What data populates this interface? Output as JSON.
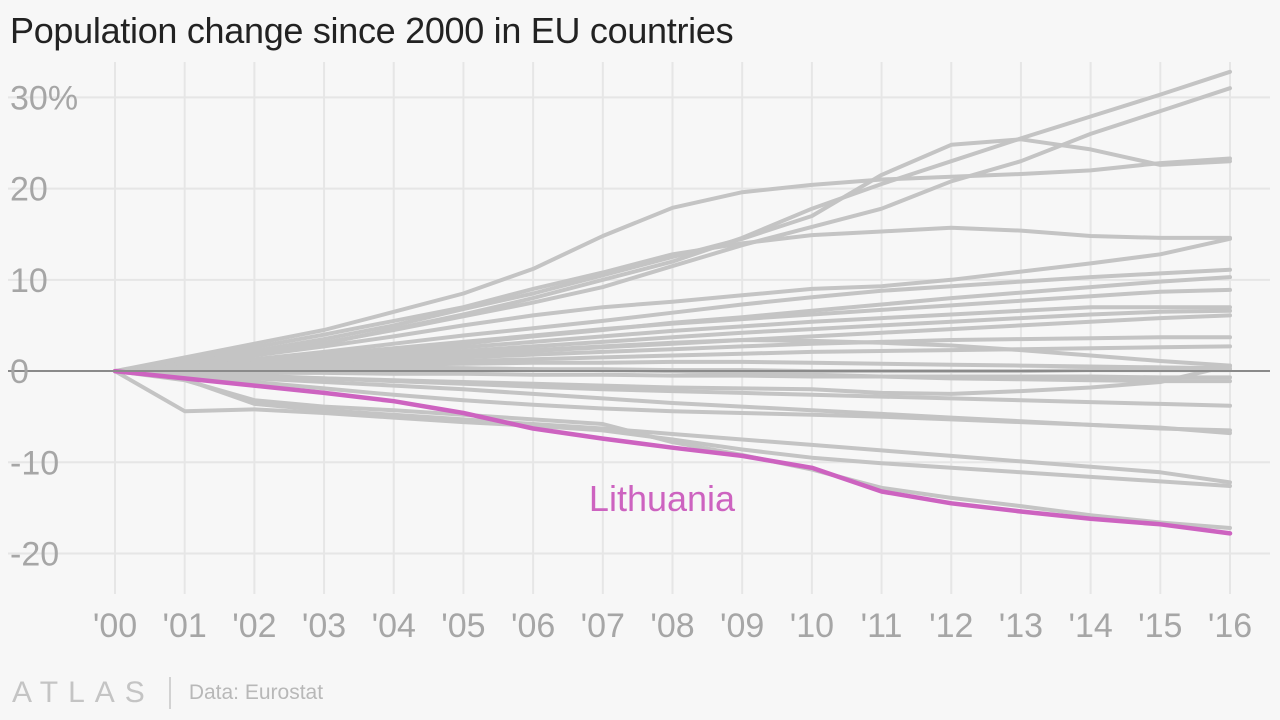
{
  "title": "Population change since 2000 in EU countries",
  "source": "Data: Eurostat",
  "brand": "ATLAS",
  "colors": {
    "background": "#f7f7f7",
    "series": "#c4c4c4",
    "highlight": "#cd63c0",
    "axis_text": "#a6a6a6"
  },
  "chart_data": {
    "type": "line",
    "categories": [
      "'00",
      "'01",
      "'02",
      "'03",
      "'04",
      "'05",
      "'06",
      "'07",
      "'08",
      "'09",
      "'10",
      "'11",
      "'12",
      "'13",
      "'14",
      "'15",
      "'16"
    ],
    "ylim": [
      -24,
      33
    ],
    "yticks": [
      30,
      20,
      10,
      0,
      -10,
      -20
    ],
    "ytick_labels": [
      "30%",
      "20",
      "10",
      "0",
      "-10",
      "-20"
    ],
    "grid": true,
    "highlight": "Lithuania",
    "series": [
      {
        "name": "Lithuania",
        "values": [
          0,
          -0.8,
          -1.6,
          -2.4,
          -3.3,
          -4.6,
          -6.3,
          -7.4,
          -8.4,
          -9.3,
          -10.6,
          -13.2,
          -14.5,
          -15.4,
          -16.2,
          -16.8,
          -17.8
        ]
      },
      {
        "values": [
          0,
          1.5,
          3.0,
          4.5,
          6.5,
          8.5,
          11.2,
          14.8,
          17.9,
          19.6,
          20.4,
          21.0,
          21.3,
          21.6,
          22.0,
          22.8,
          23.3
        ]
      },
      {
        "values": [
          0,
          1.0,
          2.2,
          3.5,
          5.0,
          6.8,
          8.5,
          10.5,
          12.5,
          14.5,
          17.0,
          21.5,
          24.8,
          25.4,
          24.3,
          22.6,
          23.0
        ]
      },
      {
        "values": [
          0,
          0.8,
          1.8,
          3.0,
          4.6,
          6.2,
          8.0,
          10.0,
          12.0,
          14.6,
          17.8,
          20.5,
          23.0,
          25.5,
          27.9,
          30.3,
          32.8
        ]
      },
      {
        "values": [
          0,
          1.2,
          2.6,
          4.0,
          5.5,
          7.0,
          9.0,
          10.8,
          12.8,
          14.0,
          14.9,
          15.3,
          15.7,
          15.4,
          14.8,
          14.6,
          14.6
        ]
      },
      {
        "values": [
          0,
          0.9,
          1.9,
          3.1,
          4.5,
          6.0,
          7.5,
          9.2,
          11.5,
          13.8,
          15.8,
          17.8,
          20.8,
          23.0,
          26.0,
          28.5,
          31.0
        ]
      },
      {
        "values": [
          0,
          0.8,
          1.7,
          2.7,
          3.8,
          5.0,
          6.1,
          7.0,
          7.6,
          8.3,
          9.0,
          9.3,
          10.0,
          10.9,
          11.8,
          12.8,
          14.5
        ]
      },
      {
        "values": [
          0,
          0.6,
          1.3,
          2.1,
          3.0,
          3.9,
          4.7,
          5.5,
          6.4,
          7.3,
          8.1,
          8.8,
          9.3,
          9.8,
          10.3,
          10.7,
          11.1
        ]
      },
      {
        "values": [
          0,
          0.5,
          1.1,
          1.8,
          2.5,
          3.2,
          3.9,
          4.6,
          5.2,
          5.7,
          6.2,
          6.7,
          7.2,
          7.7,
          8.2,
          8.7,
          8.9
        ]
      },
      {
        "values": [
          0,
          0.5,
          1.0,
          1.6,
          2.3,
          3.0,
          3.8,
          4.5,
          5.3,
          5.9,
          6.6,
          7.3,
          8.0,
          8.6,
          9.2,
          9.8,
          10.3
        ]
      },
      {
        "values": [
          0,
          0.4,
          0.9,
          1.4,
          2.0,
          2.6,
          3.2,
          3.8,
          4.4,
          4.9,
          5.4,
          5.8,
          6.2,
          6.6,
          7.0,
          7.0,
          7.0
        ]
      },
      {
        "values": [
          0,
          0.4,
          0.8,
          1.2,
          1.7,
          2.2,
          2.7,
          3.2,
          3.7,
          4.2,
          4.6,
          5.0,
          5.4,
          5.8,
          6.2,
          6.5,
          6.6
        ]
      },
      {
        "values": [
          0,
          0.3,
          0.6,
          1.0,
          1.4,
          1.8,
          2.2,
          2.6,
          3.0,
          3.4,
          3.8,
          4.2,
          4.6,
          5.0,
          5.4,
          5.8,
          6.1
        ]
      },
      {
        "values": [
          0,
          0.3,
          0.6,
          0.9,
          1.2,
          1.5,
          1.8,
          2.1,
          2.4,
          2.7,
          3.0,
          3.2,
          3.4,
          3.5,
          3.6,
          3.7,
          3.7
        ]
      },
      {
        "values": [
          0,
          0.2,
          0.5,
          0.7,
          0.9,
          1.1,
          1.3,
          1.5,
          1.7,
          1.9,
          2.1,
          2.2,
          2.3,
          2.4,
          2.5,
          2.6,
          2.7
        ]
      },
      {
        "values": [
          0,
          0.3,
          0.7,
          1.1,
          1.5,
          1.9,
          2.3,
          2.7,
          3.1,
          3.4,
          3.3,
          3.1,
          2.8,
          2.3,
          1.7,
          1.1,
          0.6
        ]
      },
      {
        "values": [
          0,
          0.2,
          0.4,
          0.6,
          0.7,
          0.8,
          0.9,
          0.9,
          1.0,
          1.0,
          0.9,
          0.8,
          0.7,
          0.6,
          0.5,
          0.4,
          0.3
        ]
      },
      {
        "values": [
          0,
          0.1,
          0.2,
          0.3,
          0.3,
          0.3,
          0.2,
          0.2,
          0.1,
          0.1,
          0.0,
          0.0,
          0.0,
          0.0,
          0.1,
          0.1,
          0.1
        ]
      },
      {
        "values": [
          0,
          -0.1,
          -0.2,
          -0.2,
          -0.3,
          -0.3,
          -0.4,
          -0.4,
          -0.5,
          -0.5,
          -0.6,
          -0.6,
          -0.6,
          -0.6,
          -0.6,
          -0.7,
          -0.7
        ]
      },
      {
        "values": [
          0,
          0.2,
          0.3,
          0.4,
          0.4,
          0.3,
          0.2,
          0.1,
          0.0,
          -0.2,
          -0.4,
          -0.6,
          -0.8,
          -0.9,
          -1.0,
          -1.1,
          -1.1
        ]
      },
      {
        "values": [
          0,
          -0.3,
          -0.6,
          -0.8,
          -1.0,
          -1.2,
          -1.4,
          -1.6,
          -1.8,
          -1.9,
          -2.0,
          -2.4,
          -2.5,
          -2.2,
          -1.8,
          -1.2,
          0.6
        ]
      },
      {
        "values": [
          0,
          -0.2,
          -0.5,
          -0.8,
          -1.1,
          -1.4,
          -1.7,
          -2.0,
          -2.2,
          -2.4,
          -2.6,
          -2.8,
          -3.0,
          -3.2,
          -3.4,
          -3.6,
          -3.8
        ]
      },
      {
        "values": [
          0,
          -0.4,
          -0.8,
          -1.2,
          -1.6,
          -2.0,
          -2.5,
          -3.0,
          -3.5,
          -3.9,
          -4.3,
          -4.7,
          -5.1,
          -5.5,
          -5.9,
          -6.3,
          -6.5
        ]
      },
      {
        "values": [
          0,
          -0.5,
          -1.2,
          -1.9,
          -2.6,
          -3.2,
          -3.7,
          -4.1,
          -4.4,
          -4.6,
          -4.8,
          -5.0,
          -5.3,
          -5.6,
          -5.9,
          -6.2,
          -6.8
        ]
      },
      {
        "values": [
          0,
          -4.4,
          -4.2,
          -4.6,
          -5.1,
          -5.6,
          -6.0,
          -6.5,
          -7.5,
          -8.6,
          -9.5,
          -10.1,
          -10.6,
          -11.1,
          -11.6,
          -12.1,
          -12.6
        ]
      },
      {
        "values": [
          0,
          -1.0,
          -3.2,
          -3.9,
          -4.3,
          -4.8,
          -5.3,
          -5.8,
          -7.8,
          -9.2,
          -10.8,
          -12.8,
          -13.9,
          -14.8,
          -15.8,
          -16.6,
          -17.2
        ]
      },
      {
        "values": [
          0,
          -0.9,
          -3.6,
          -4.3,
          -4.8,
          -5.3,
          -5.8,
          -6.3,
          -6.9,
          -7.5,
          -8.1,
          -8.7,
          -9.3,
          -9.9,
          -10.5,
          -11.1,
          -12.2
        ]
      }
    ]
  }
}
